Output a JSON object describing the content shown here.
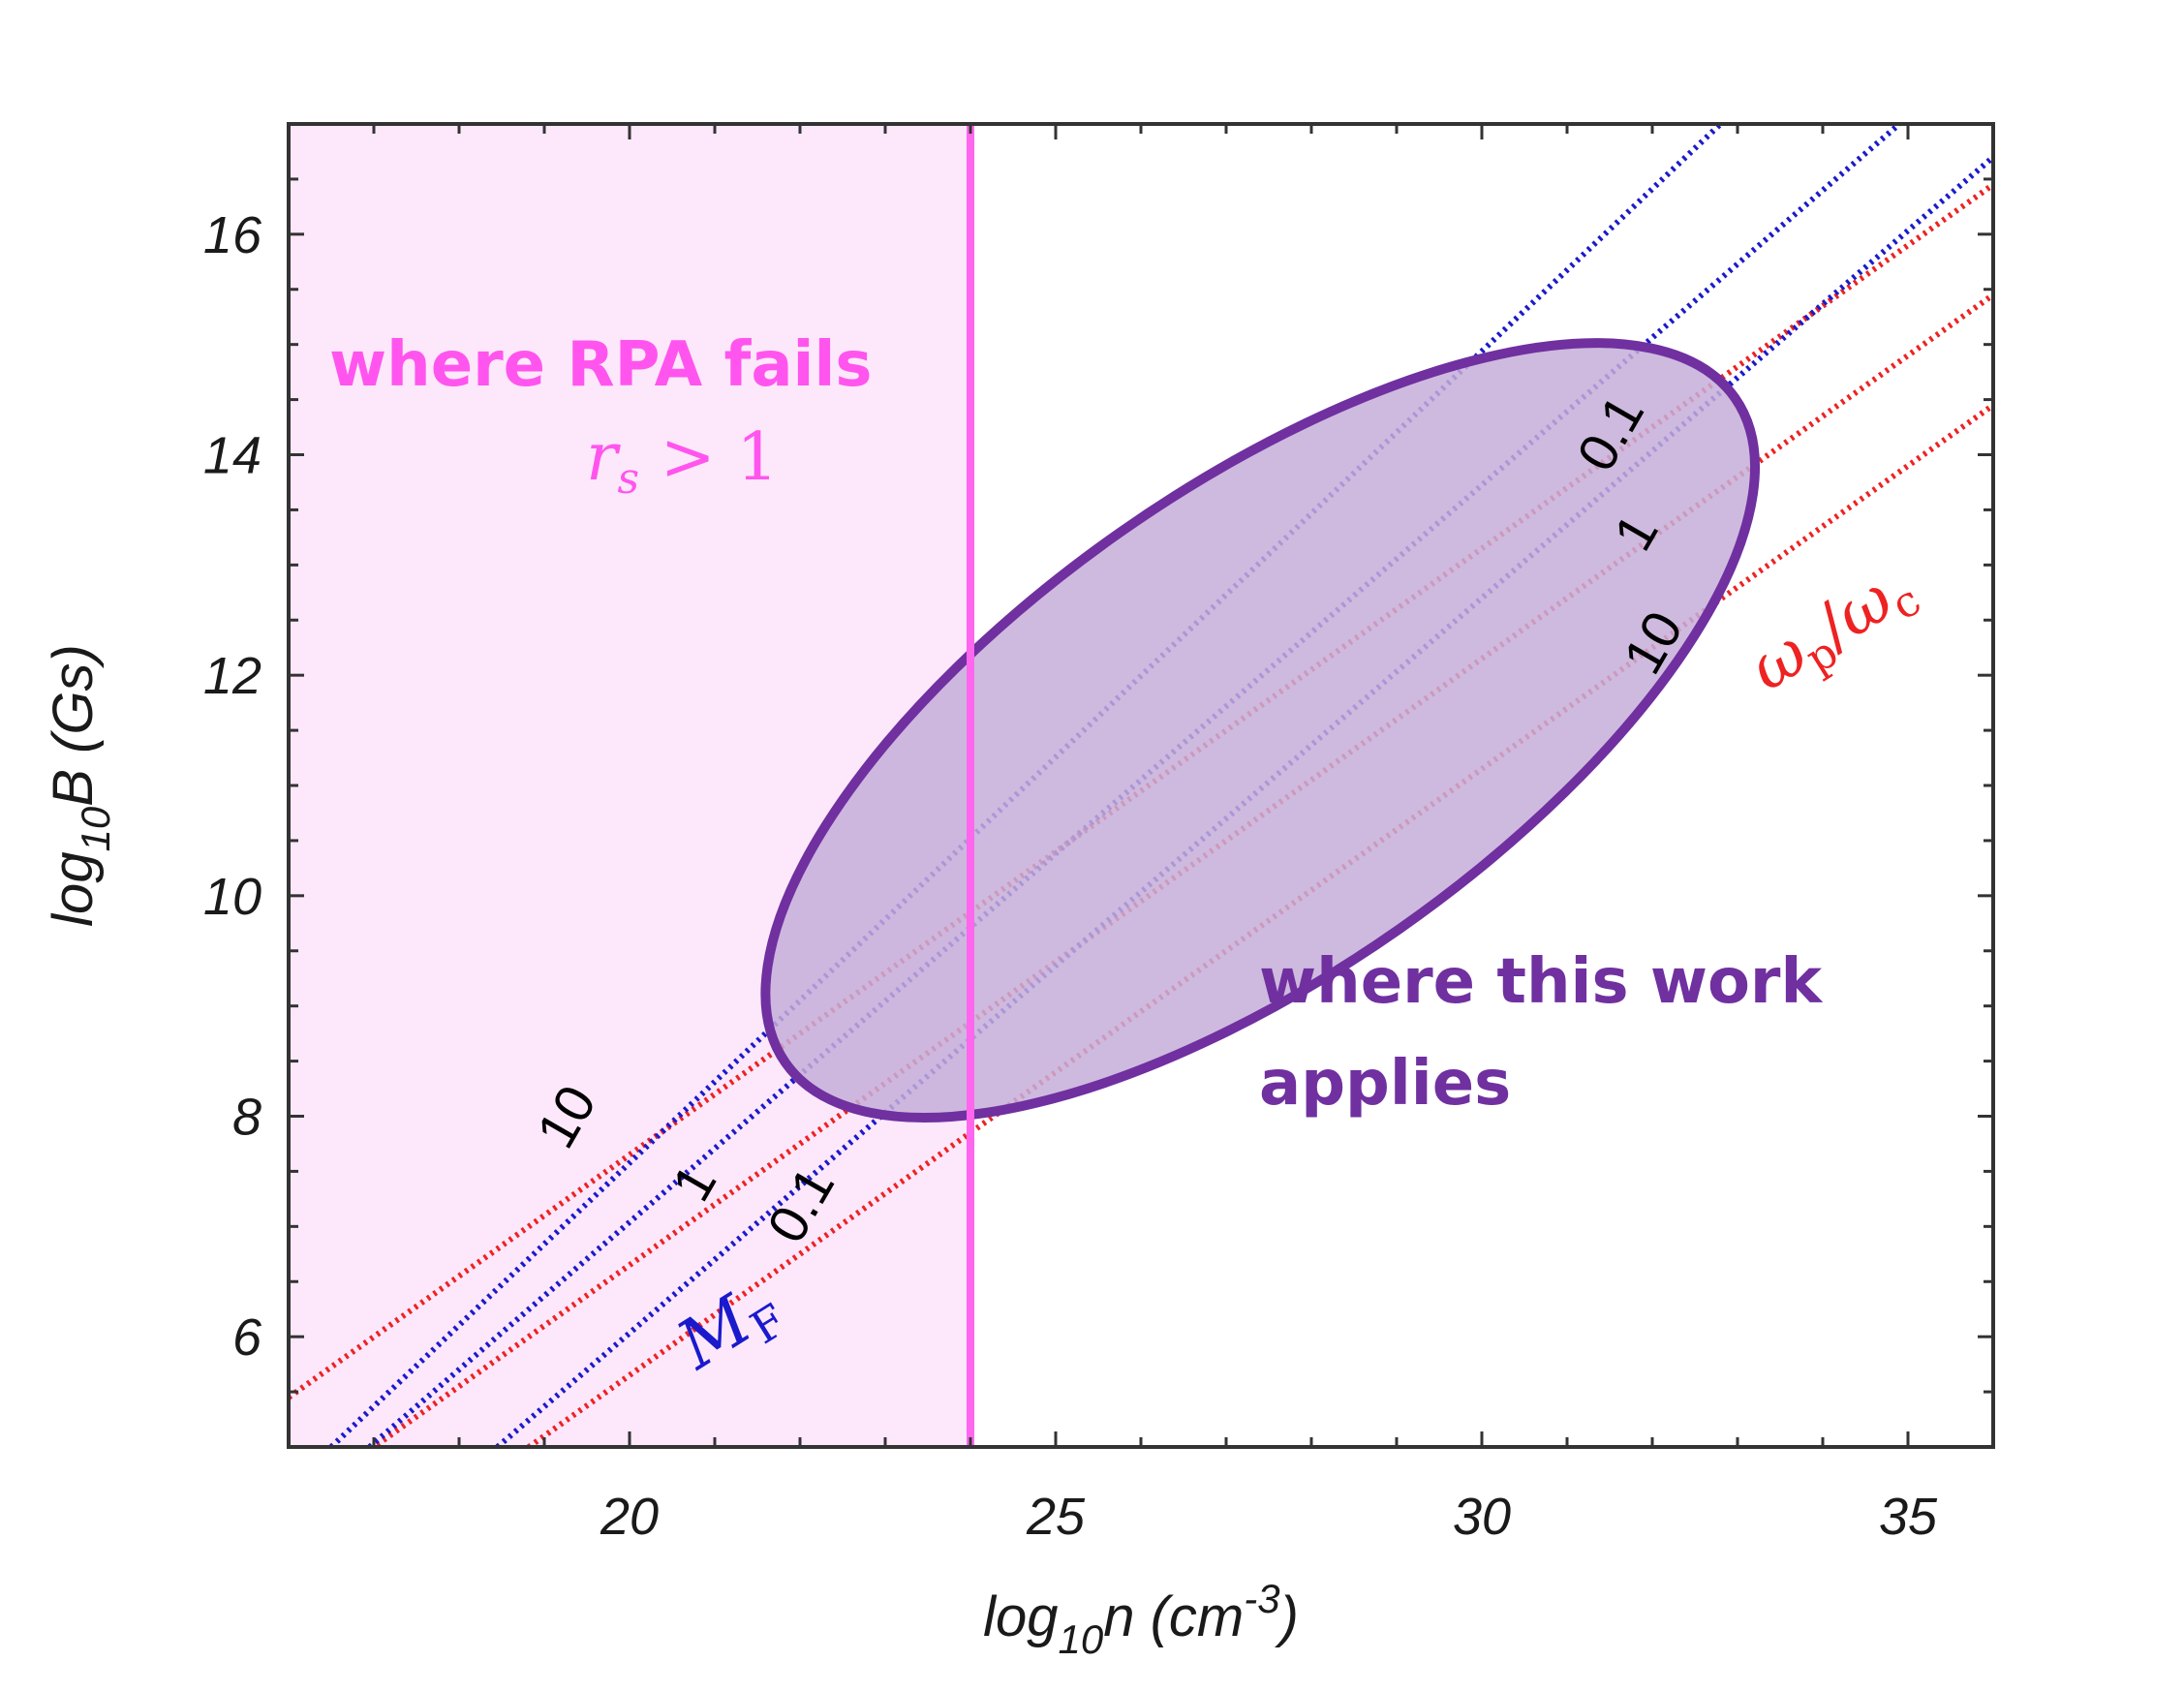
{
  "chart_data": {
    "type": "line",
    "xlabel": {
      "base": "log",
      "sub": "10",
      "var": "n",
      "unit_open": " (cm",
      "unit_exp": "-3",
      "unit_close": ")"
    },
    "ylabel": {
      "base": "log",
      "sub": "10",
      "var": "B",
      "unit": " (Gs)"
    },
    "xlim": [
      16,
      36
    ],
    "ylim": [
      5,
      17
    ],
    "x_ticks": [
      20,
      25,
      30,
      35
    ],
    "y_ticks": [
      6,
      8,
      10,
      12,
      14,
      16
    ],
    "x_minor_step": 1,
    "y_minor_step": 0.5,
    "grid": false,
    "colors": {
      "red_series": "#ee2222",
      "blue_series": "#1a1acc",
      "rpa_region_fill": "#fde8fb",
      "rpa_boundary": "#ff66ee",
      "ellipse_fill": "#c6aed8",
      "ellipse_stroke": "#7030a0",
      "annotation_magenta": "#ff55ee",
      "annotation_purple": "#7030a0"
    },
    "series": [
      {
        "group": "wp_over_wc",
        "label": "0.1",
        "color": "red",
        "points": [
          [
            16,
            5.45
          ],
          [
            36,
            16.45
          ]
        ]
      },
      {
        "group": "wp_over_wc",
        "label": "1",
        "color": "red",
        "points": [
          [
            16,
            4.45
          ],
          [
            36,
            15.45
          ]
        ]
      },
      {
        "group": "wp_over_wc",
        "label": "10",
        "color": "red",
        "points": [
          [
            16,
            3.45
          ],
          [
            36,
            14.45
          ]
        ]
      },
      {
        "group": "M_F",
        "label": "10",
        "color": "blue",
        "points": [
          [
            16.5,
            5.0
          ],
          [
            32.8,
            17.0
          ]
        ]
      },
      {
        "group": "M_F",
        "label": "1",
        "color": "blue",
        "points": [
          [
            16.95,
            5.0
          ],
          [
            34.9,
            17.0
          ]
        ]
      },
      {
        "group": "M_F",
        "label": "0.1",
        "color": "blue",
        "points": [
          [
            18.45,
            5.0
          ],
          [
            36,
            16.7
          ]
        ]
      }
    ],
    "contour_labels": [
      {
        "text": "0.1",
        "x": 31.5,
        "y": 14.2,
        "angle": -60
      },
      {
        "text": "1",
        "x": 31.8,
        "y": 13.3,
        "angle": -60
      },
      {
        "text": "10",
        "x": 32.0,
        "y": 12.3,
        "angle": -60
      },
      {
        "text": "10",
        "x": 19.25,
        "y": 8.0,
        "angle": -60
      },
      {
        "text": "1",
        "x": 20.75,
        "y": 7.4,
        "angle": -60
      },
      {
        "text": "0.1",
        "x": 22.0,
        "y": 7.2,
        "angle": -60
      }
    ],
    "regions": {
      "rpa_fails": {
        "x_max": 24
      },
      "this_work": {
        "center": [
          27.4,
          11.5
        ],
        "rx": 6.8,
        "ry": 2.2,
        "angle_deg": -35
      }
    },
    "annotations": {
      "rpa_fails": "where RPA fails",
      "rs_condition": {
        "var": "r",
        "sub": "s",
        "rel": " > 1"
      },
      "this_work_line1": "where this work",
      "this_work_line2": "applies",
      "wp_wc": {
        "num_var": "ω",
        "num_sub": "p",
        "sep": "/",
        "den_var": "ω",
        "den_sub": "c"
      },
      "mf": {
        "var": "M",
        "sub": "F"
      }
    }
  }
}
